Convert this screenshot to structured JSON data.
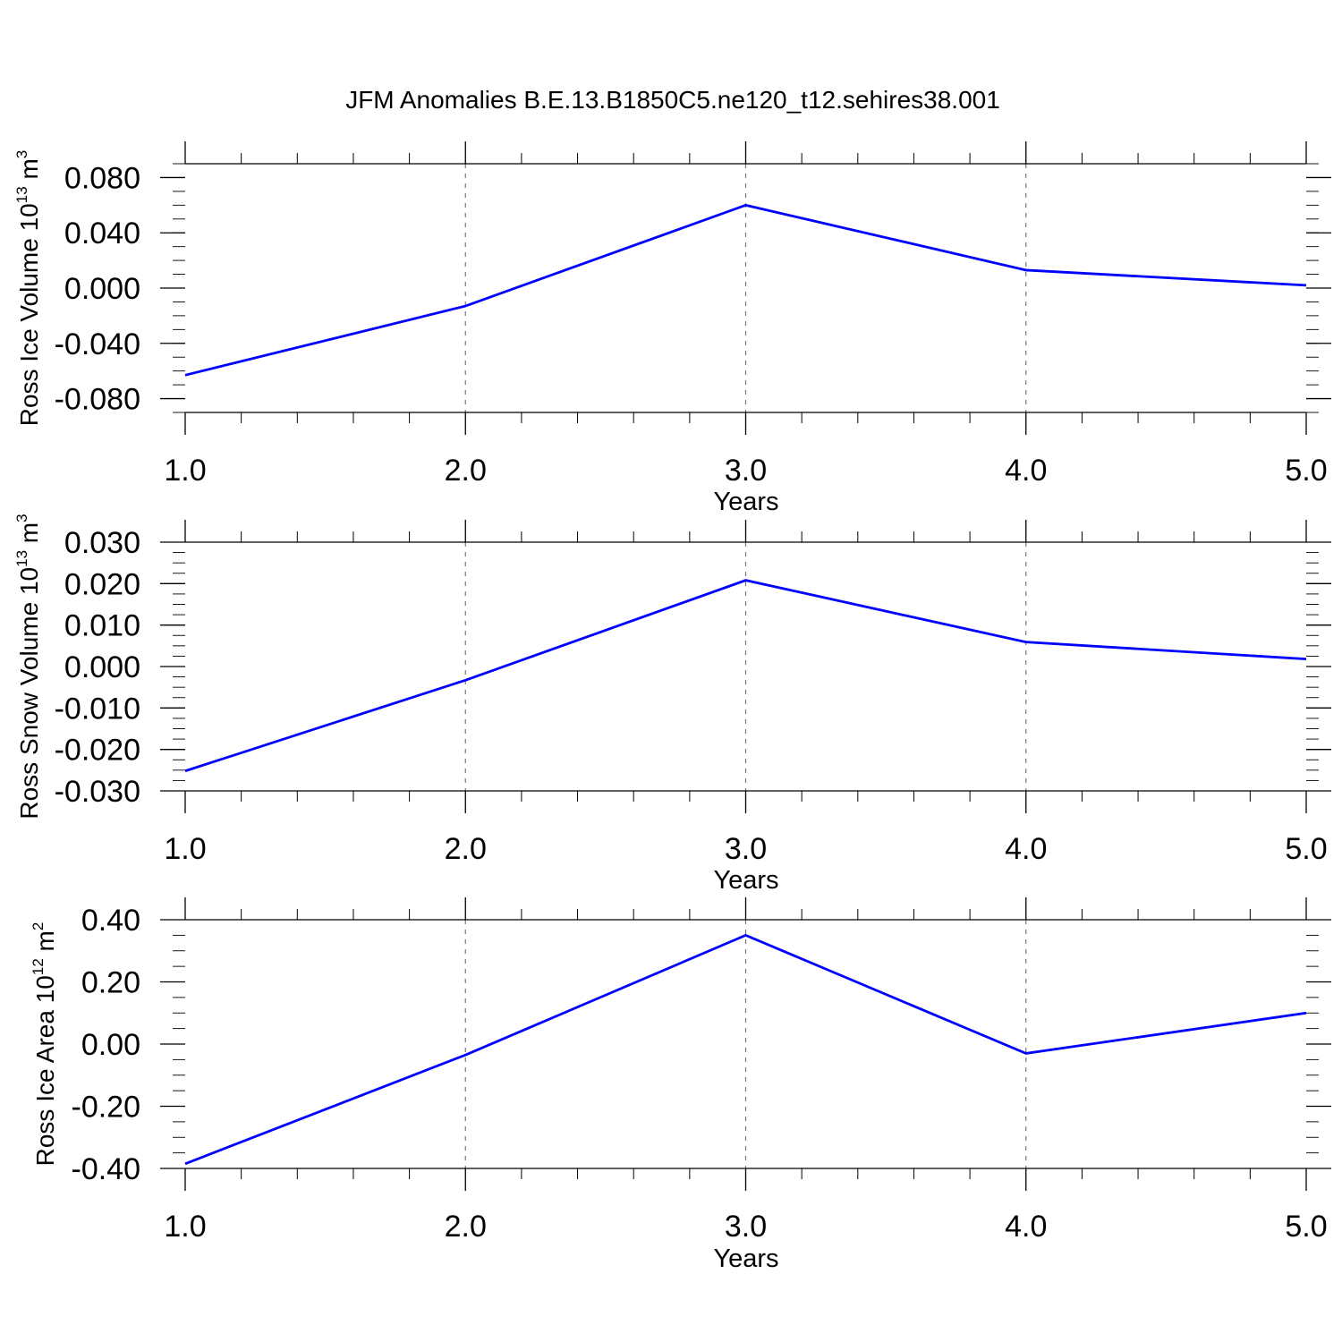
{
  "figure": {
    "title": "JFM Anomalies B.E.13.B1850C5.ne120_t12.sehires38.001",
    "line_color": "#0000ff",
    "grid_color": "#777777",
    "axis_color": "#000000"
  },
  "chart_data": [
    {
      "type": "line",
      "xlabel": "Years",
      "ylabel_parts": {
        "text": "Ross Ice Volume 10",
        "exp": "13",
        "unit": " m",
        "unit_exp": "3"
      },
      "x": [
        1.0,
        2.0,
        3.0,
        4.0,
        5.0
      ],
      "y": [
        -0.063,
        -0.013,
        0.06,
        0.013,
        0.002
      ],
      "xlim": [
        1.0,
        5.0
      ],
      "ylim": [
        -0.09,
        0.09
      ],
      "xticks": [
        "1.0",
        "2.0",
        "3.0",
        "4.0",
        "5.0"
      ],
      "yticks": [
        0.08,
        0.04,
        0.0,
        -0.04,
        -0.08
      ],
      "ytick_labels": [
        "0.080",
        "0.040",
        "0.000",
        "-0.040",
        "-0.080"
      ],
      "yminor_step": 0.01,
      "grid": "vertical dashed at major x ticks"
    },
    {
      "type": "line",
      "xlabel": "Years",
      "ylabel_parts": {
        "text": "Ross Snow Volume 10",
        "exp": "13",
        "unit": " m",
        "unit_exp": "3"
      },
      "x": [
        1.0,
        2.0,
        3.0,
        4.0,
        5.0
      ],
      "y": [
        -0.0252,
        -0.0033,
        0.0208,
        0.0059,
        0.0018
      ],
      "xlim": [
        1.0,
        5.0
      ],
      "ylim": [
        -0.03,
        0.03
      ],
      "xticks": [
        "1.0",
        "2.0",
        "3.0",
        "4.0",
        "5.0"
      ],
      "yticks": [
        0.03,
        0.02,
        0.01,
        0.0,
        -0.01,
        -0.02,
        -0.03
      ],
      "ytick_labels": [
        "0.030",
        "0.020",
        "0.010",
        "0.000",
        "-0.010",
        "-0.020",
        "-0.030"
      ],
      "yminor_step": 0.0025,
      "grid": "vertical dashed at major x ticks"
    },
    {
      "type": "line",
      "xlabel": "Years",
      "ylabel_parts": {
        "text": "Ross Ice Area 10",
        "exp": "12",
        "unit": " m",
        "unit_exp": "2"
      },
      "x": [
        1.0,
        2.0,
        3.0,
        4.0,
        5.0
      ],
      "y": [
        -0.385,
        -0.035,
        0.35,
        -0.03,
        0.1
      ],
      "xlim": [
        1.0,
        5.0
      ],
      "ylim": [
        -0.4,
        0.4
      ],
      "xticks": [
        "1.0",
        "2.0",
        "3.0",
        "4.0",
        "5.0"
      ],
      "yticks": [
        0.4,
        0.2,
        0.0,
        -0.2,
        -0.4
      ],
      "ytick_labels": [
        "0.40",
        "0.20",
        "0.00",
        "-0.20",
        "-0.40"
      ],
      "yminor_step": 0.05,
      "grid": "vertical dashed at major x ticks"
    }
  ]
}
